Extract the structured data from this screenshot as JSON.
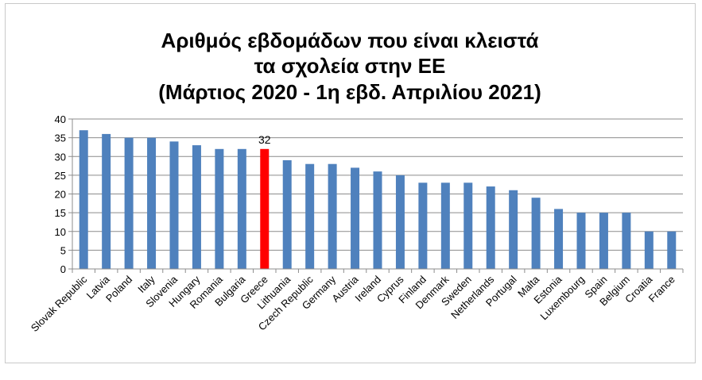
{
  "chart_data": {
    "type": "bar",
    "title_lines": [
      "Αριθμός εβδομάδων που είναι κλειστά",
      "τα σχολεία στην ΕΕ",
      "(Μάρτιος 2020 - 1η εβδ. Απριλίου 2021)"
    ],
    "categories": [
      "Slovak Republic",
      "Latvia",
      "Poland",
      "Italy",
      "Slovenia",
      "Hungary",
      "Romania",
      "Bulgaria",
      "Greece",
      "Lithuania",
      "Czech Republic",
      "Germany",
      "Austria",
      "Ireland",
      "Cyprus",
      "Finland",
      "Denmark",
      "Sweden",
      "Netherlands",
      "Portugal",
      "Malta",
      "Estonia",
      "Luxembourg",
      "Spain",
      "Belgium",
      "Croatia",
      "France"
    ],
    "values": [
      37,
      36,
      35,
      35,
      34,
      33,
      32,
      32,
      32,
      29,
      28,
      28,
      27,
      26,
      25,
      23,
      23,
      23,
      22,
      21,
      19,
      16,
      15,
      15,
      15,
      10,
      10
    ],
    "ylim": [
      0,
      40
    ],
    "yticks": [
      "0",
      "5",
      "10",
      "15",
      "20",
      "25",
      "30",
      "35",
      "40"
    ],
    "grid": true,
    "legend": "none",
    "colors": {
      "default": "#4f81bd",
      "highlight": "#ff0000"
    },
    "highlight_index": 8,
    "data_labels": [
      {
        "index": 8,
        "text": "32"
      }
    ]
  }
}
